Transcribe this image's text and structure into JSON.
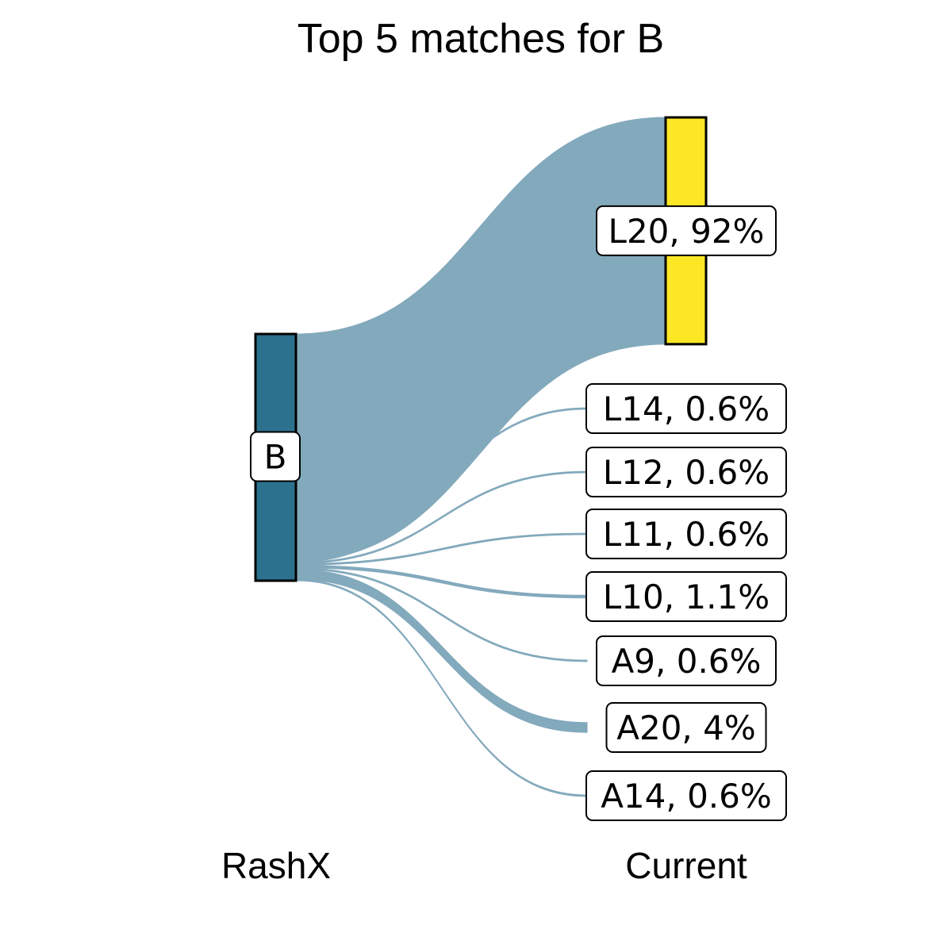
{
  "chart_data": {
    "type": "sankey",
    "title": "Top 5 matches for B",
    "left_axis_label": "RashX",
    "right_axis_label": "Current",
    "colors": {
      "source_node": "#2c718e",
      "target_node_highlight": "#fde725",
      "flow": "#83a9bc",
      "label_stroke": "#000000"
    },
    "source": {
      "label": "B"
    },
    "targets": [
      {
        "label": "L20, 92%",
        "name": "L20",
        "percent": 92,
        "highlight": true
      },
      {
        "label": "L14, 0.6%",
        "name": "L14",
        "percent": 0.6,
        "highlight": false
      },
      {
        "label": "L12, 0.6%",
        "name": "L12",
        "percent": 0.6,
        "highlight": false
      },
      {
        "label": "L11, 0.6%",
        "name": "L11",
        "percent": 0.6,
        "highlight": false
      },
      {
        "label": "L10, 1.1%",
        "name": "L10",
        "percent": 1.1,
        "highlight": false
      },
      {
        "label": "A9, 0.6%",
        "name": "A9",
        "percent": 0.6,
        "highlight": false
      },
      {
        "label": "A20, 4%",
        "name": "A20",
        "percent": 4,
        "highlight": false
      },
      {
        "label": "A14, 0.6%",
        "name": "A14",
        "percent": 0.6,
        "highlight": false
      }
    ]
  }
}
